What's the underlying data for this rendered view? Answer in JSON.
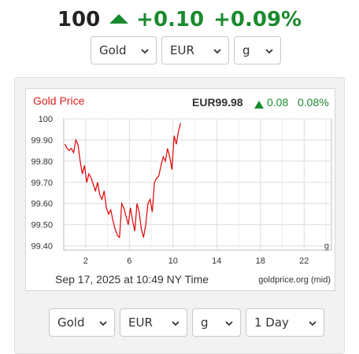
{
  "ticker": {
    "price": "100",
    "change": "+0.10",
    "change_percent": "+0.09%",
    "trend_icon": "up-triangle-icon",
    "color_up": "#1a8a2e"
  },
  "top_selectors": {
    "metal": "Gold",
    "currency": "EUR",
    "unit": "g"
  },
  "bottom_selectors": {
    "metal": "Gold",
    "currency": "EUR",
    "unit": "g",
    "range": "1 Day"
  },
  "chart_data": {
    "type": "line",
    "title": "Gold Price",
    "quote": "EUR99.98",
    "change": "0.08",
    "change_percent": "0.08%",
    "unit_label": "g",
    "timestamp": "Sep 17, 2025 at 10:49 NY Time",
    "source": "goldprice.org (mid)",
    "line_color": "#e00000",
    "x_ticks": [
      2,
      6,
      10,
      14,
      18,
      22
    ],
    "y_ticks": [
      "100",
      "99.90",
      "99.80",
      "99.70",
      "99.60",
      "99.50",
      "99.40"
    ],
    "xlim": [
      0,
      24.5
    ],
    "ylim": [
      99.38,
      100.0
    ],
    "grid": true,
    "x": [
      0.1,
      0.3,
      0.5,
      0.7,
      0.9,
      1.1,
      1.3,
      1.5,
      1.7,
      1.9,
      2.1,
      2.3,
      2.5,
      2.7,
      2.9,
      3.1,
      3.3,
      3.5,
      3.7,
      3.9,
      4.1,
      4.3,
      4.5,
      4.7,
      4.9,
      5.1,
      5.3,
      5.5,
      5.7,
      5.9,
      6.1,
      6.3,
      6.5,
      6.7,
      6.9,
      7.1,
      7.3,
      7.5,
      7.7,
      7.9,
      8.1,
      8.3,
      8.5,
      8.7,
      8.9,
      9.1,
      9.3,
      9.5,
      9.7,
      9.9,
      10.1,
      10.3,
      10.5,
      10.7
    ],
    "values": [
      99.88,
      99.86,
      99.85,
      99.86,
      99.84,
      99.9,
      99.88,
      99.8,
      99.74,
      99.78,
      99.7,
      99.74,
      99.72,
      99.69,
      99.66,
      99.7,
      99.64,
      99.62,
      99.66,
      99.58,
      99.55,
      99.57,
      99.52,
      99.48,
      99.45,
      99.44,
      99.6,
      99.58,
      99.54,
      99.5,
      99.58,
      99.52,
      99.47,
      99.6,
      99.56,
      99.48,
      99.44,
      99.5,
      99.6,
      99.62,
      99.56,
      99.7,
      99.72,
      99.73,
      99.78,
      99.82,
      99.8,
      99.86,
      99.82,
      99.76,
      99.92,
      99.88,
      99.94,
      99.98
    ]
  }
}
